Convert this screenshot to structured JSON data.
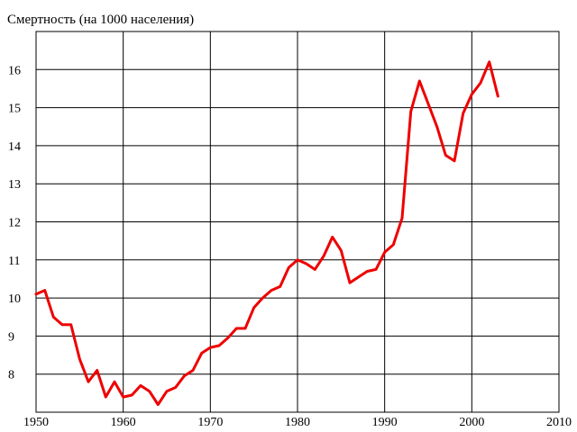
{
  "chart_data": {
    "type": "line",
    "title": "Смертность (на 1000 населения)",
    "xlabel": "",
    "ylabel": "",
    "xlim": [
      1950,
      2010
    ],
    "ylim": [
      7,
      17
    ],
    "xticks": [
      1950,
      1960,
      1970,
      1980,
      1990,
      2000,
      2010
    ],
    "xtick_labels": [
      "1950",
      "1960",
      "1970",
      "1980",
      "1990",
      "2000",
      "2010"
    ],
    "yticks": [
      8,
      9,
      10,
      11,
      12,
      13,
      14,
      15,
      16
    ],
    "ytick_labels": [
      "8",
      "9",
      "10",
      "11",
      "12",
      "13",
      "14",
      "15",
      "16"
    ],
    "grid": true,
    "legend": "none",
    "series": [
      {
        "color": "#ee0000",
        "x": [
          1950,
          1951,
          1952,
          1953,
          1954,
          1955,
          1956,
          1957,
          1958,
          1959,
          1960,
          1961,
          1962,
          1963,
          1964,
          1965,
          1966,
          1967,
          1968,
          1969,
          1970,
          1971,
          1972,
          1973,
          1974,
          1975,
          1976,
          1977,
          1978,
          1979,
          1980,
          1981,
          1982,
          1983,
          1984,
          1985,
          1986,
          1987,
          1988,
          1989,
          1990,
          1991,
          1992,
          1993,
          1994,
          1995,
          1996,
          1997,
          1998,
          1999,
          2000,
          2001,
          2002,
          2003
        ],
        "y": [
          10.1,
          10.2,
          9.5,
          9.3,
          9.3,
          8.4,
          7.8,
          8.1,
          7.4,
          7.8,
          7.4,
          7.45,
          7.7,
          7.55,
          7.2,
          7.55,
          7.65,
          7.95,
          8.1,
          8.55,
          8.7,
          8.75,
          8.95,
          9.2,
          9.2,
          9.75,
          10.0,
          10.2,
          10.3,
          10.8,
          11.0,
          10.9,
          10.75,
          11.1,
          11.6,
          11.25,
          10.4,
          10.55,
          10.7,
          10.75,
          11.2,
          11.4,
          12.1,
          14.9,
          15.7,
          15.1,
          14.5,
          13.75,
          13.6,
          14.85,
          15.35,
          15.65,
          16.2,
          15.3
        ]
      }
    ]
  }
}
